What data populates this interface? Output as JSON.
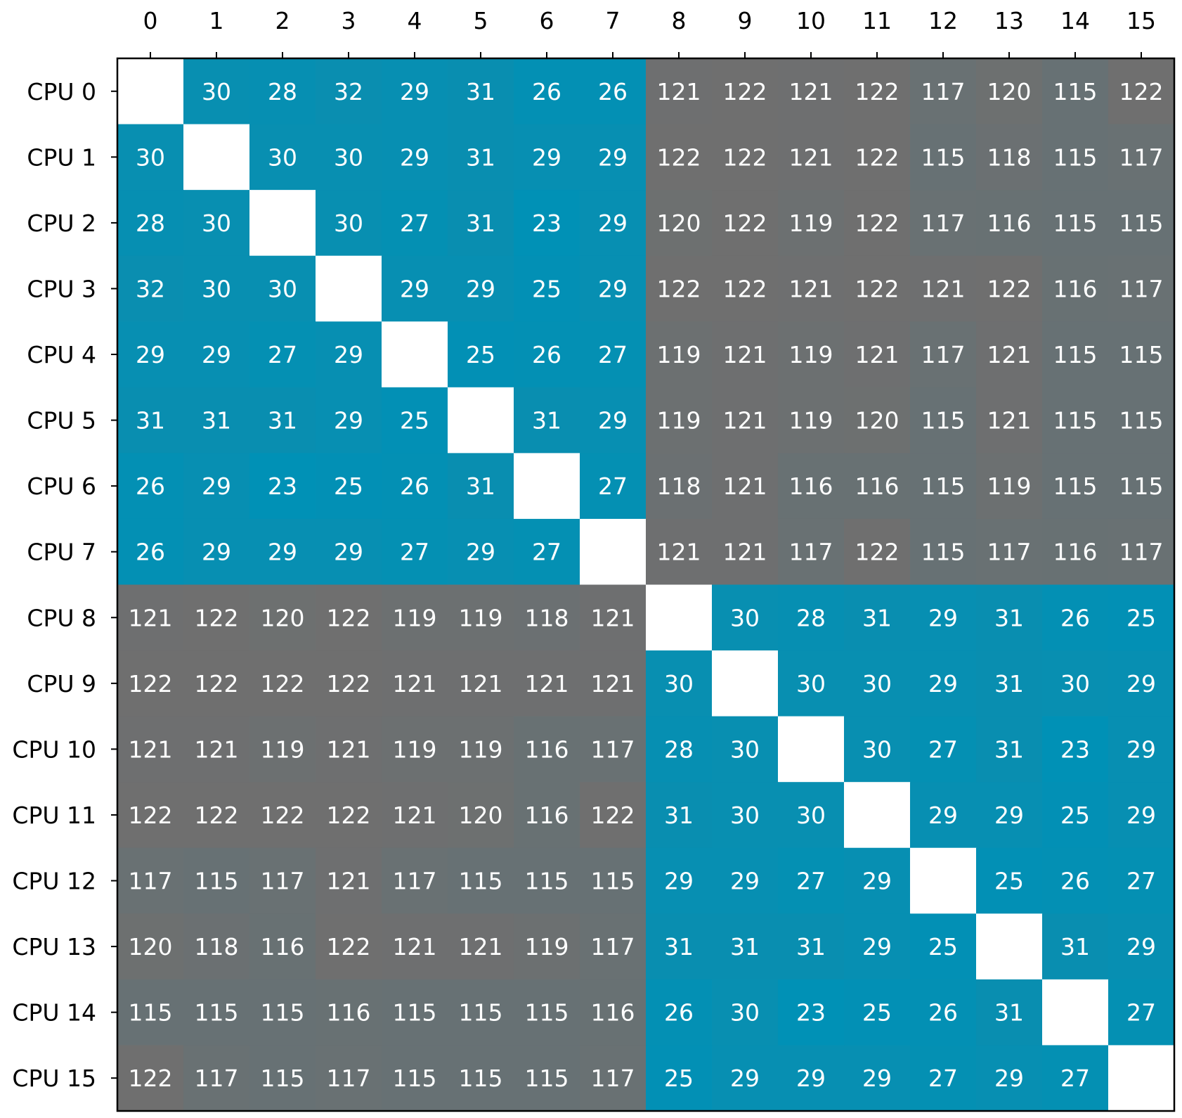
{
  "chart_data": {
    "type": "heatmap",
    "title": "",
    "xlabel": "",
    "ylabel": "",
    "x_tick_position": "top",
    "x_categories": [
      "0",
      "1",
      "2",
      "3",
      "4",
      "5",
      "6",
      "7",
      "8",
      "9",
      "10",
      "11",
      "12",
      "13",
      "14",
      "15"
    ],
    "y_categories": [
      "CPU 0",
      "CPU 1",
      "CPU 2",
      "CPU 3",
      "CPU 4",
      "CPU 5",
      "CPU 6",
      "CPU 7",
      "CPU 8",
      "CPU 9",
      "CPU 10",
      "CPU 11",
      "CPU 12",
      "CPU 13",
      "CPU 14",
      "CPU 15"
    ],
    "diagonal": "blank",
    "colormap": {
      "low": "#0091b6",
      "high": "#6f6f6f",
      "diagonal": "#ffffff",
      "text": "#ffffff"
    },
    "values": [
      [
        null,
        30,
        28,
        32,
        29,
        31,
        26,
        26,
        121,
        122,
        121,
        122,
        117,
        120,
        115,
        122
      ],
      [
        30,
        null,
        30,
        30,
        29,
        31,
        29,
        29,
        122,
        122,
        121,
        122,
        115,
        118,
        115,
        117
      ],
      [
        28,
        30,
        null,
        30,
        27,
        31,
        23,
        29,
        120,
        122,
        119,
        122,
        117,
        116,
        115,
        115
      ],
      [
        32,
        30,
        30,
        null,
        29,
        29,
        25,
        29,
        122,
        122,
        121,
        122,
        121,
        122,
        116,
        117
      ],
      [
        29,
        29,
        27,
        29,
        null,
        25,
        26,
        27,
        119,
        121,
        119,
        121,
        117,
        121,
        115,
        115
      ],
      [
        31,
        31,
        31,
        29,
        25,
        null,
        31,
        29,
        119,
        121,
        119,
        120,
        115,
        121,
        115,
        115
      ],
      [
        26,
        29,
        23,
        25,
        26,
        31,
        null,
        27,
        118,
        121,
        116,
        116,
        115,
        119,
        115,
        115
      ],
      [
        26,
        29,
        29,
        29,
        27,
        29,
        27,
        null,
        121,
        121,
        117,
        122,
        115,
        117,
        116,
        117
      ],
      [
        121,
        122,
        120,
        122,
        119,
        119,
        118,
        121,
        null,
        30,
        28,
        31,
        29,
        31,
        26,
        25
      ],
      [
        122,
        122,
        122,
        122,
        121,
        121,
        121,
        121,
        30,
        null,
        30,
        30,
        29,
        31,
        30,
        29
      ],
      [
        121,
        121,
        119,
        121,
        119,
        119,
        116,
        117,
        28,
        30,
        null,
        30,
        27,
        31,
        23,
        29
      ],
      [
        122,
        122,
        122,
        122,
        121,
        120,
        116,
        122,
        31,
        30,
        30,
        null,
        29,
        29,
        25,
        29
      ],
      [
        117,
        115,
        117,
        121,
        117,
        115,
        115,
        115,
        29,
        29,
        27,
        29,
        null,
        25,
        26,
        27
      ],
      [
        120,
        118,
        116,
        122,
        121,
        121,
        119,
        117,
        31,
        31,
        31,
        29,
        25,
        null,
        31,
        29
      ],
      [
        115,
        115,
        115,
        116,
        115,
        115,
        115,
        116,
        26,
        30,
        23,
        25,
        26,
        31,
        null,
        27
      ],
      [
        122,
        117,
        115,
        117,
        115,
        115,
        115,
        117,
        25,
        29,
        29,
        29,
        27,
        29,
        27,
        null
      ]
    ]
  }
}
